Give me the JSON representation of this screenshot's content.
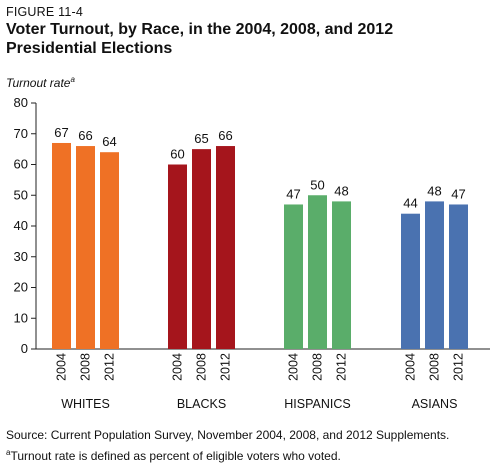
{
  "figure_label": "FIGURE 11-4",
  "chart_data": {
    "type": "bar",
    "title": "Voter Turnout, by Race, in the 2004, 2008, and 2012 Presidential Elections",
    "ylabel": "Turnout rate",
    "ylabel_note_marker": "a",
    "ylim": [
      0,
      80
    ],
    "yticks": [
      0,
      10,
      20,
      30,
      40,
      50,
      60,
      70,
      80
    ],
    "grid": false,
    "groups": [
      {
        "name": "WHITES",
        "color": "#ef7125",
        "years": [
          "2004",
          "2008",
          "2012"
        ],
        "values": [
          67,
          66,
          64
        ]
      },
      {
        "name": "BLACKS",
        "color": "#a5151c",
        "years": [
          "2004",
          "2008",
          "2012"
        ],
        "values": [
          60,
          65,
          66
        ]
      },
      {
        "name": "HISPANICS",
        "color": "#5aad6a",
        "years": [
          "2004",
          "2008",
          "2012"
        ],
        "values": [
          47,
          50,
          48
        ]
      },
      {
        "name": "ASIANS",
        "color": "#4a72b0",
        "years": [
          "2004",
          "2008",
          "2012"
        ],
        "values": [
          44,
          48,
          47
        ]
      }
    ]
  },
  "footer": {
    "source": "Source: Current Population Survey, November 2004, 2008, and 2012 Supplements.",
    "note_marker": "a",
    "note": "Turnout rate is defined as percent of eligible voters who voted."
  }
}
